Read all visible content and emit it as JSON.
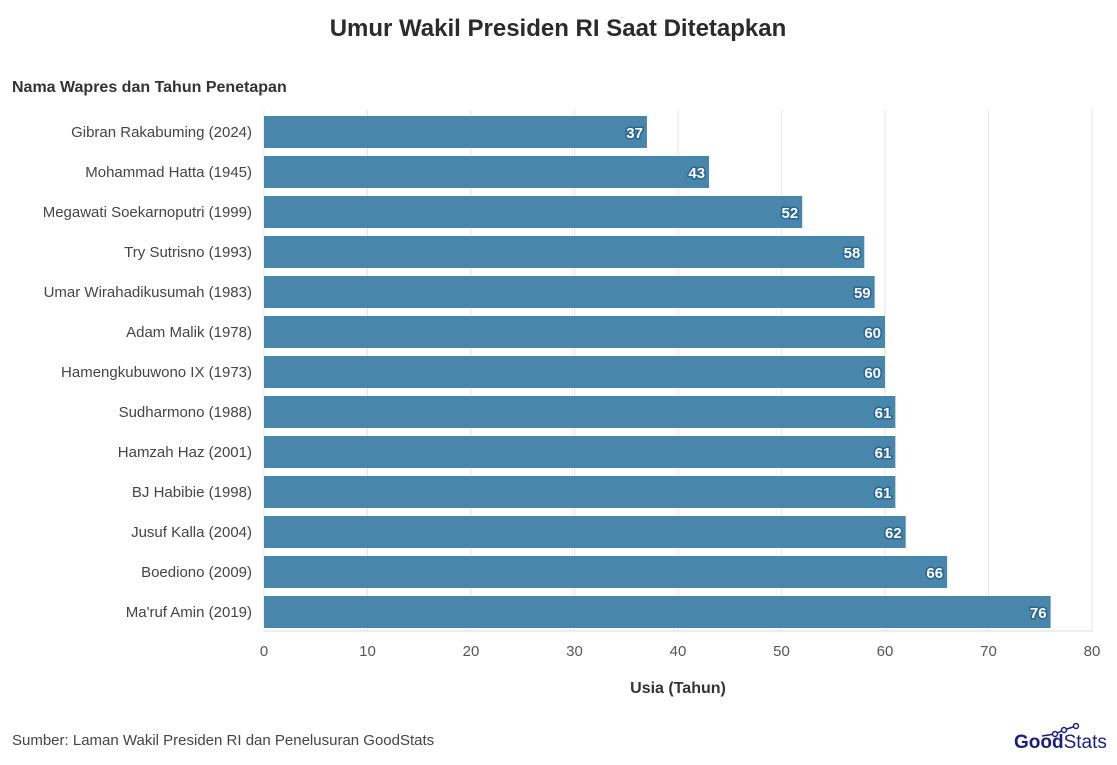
{
  "chart_data": {
    "type": "bar",
    "orientation": "horizontal",
    "title": "Umur Wakil Presiden RI Saat Ditetapkan",
    "ylabel": "Nama Wapres dan Tahun Penetapan",
    "xlabel": "Usia (Tahun)",
    "categories": [
      "Gibran Rakabuming (2024)",
      "Mohammad Hatta (1945)",
      "Megawati Soekarnoputri (1999)",
      "Try Sutrisno (1993)",
      "Umar Wirahadikusumah (1983)",
      "Adam Malik (1978)",
      "Hamengkubuwono IX (1973)",
      "Sudharmono (1988)",
      "Hamzah Haz (2001)",
      "BJ Habibie (1998)",
      "Jusuf Kalla (2004)",
      "Boediono (2009)",
      "Ma'ruf Amin (2019)"
    ],
    "values": [
      37,
      43,
      52,
      58,
      59,
      60,
      60,
      61,
      61,
      61,
      62,
      66,
      76
    ],
    "xlim": [
      0,
      80
    ],
    "xticks": [
      0,
      10,
      20,
      30,
      40,
      50,
      60,
      70,
      80
    ],
    "grid": true,
    "bar_color": "#3f7fa8"
  },
  "footer": {
    "source": "Sumber: Laman Wakil Presiden RI dan Penelusuran GoodStats",
    "logo_bold": "Good",
    "logo_light": "Stats"
  }
}
